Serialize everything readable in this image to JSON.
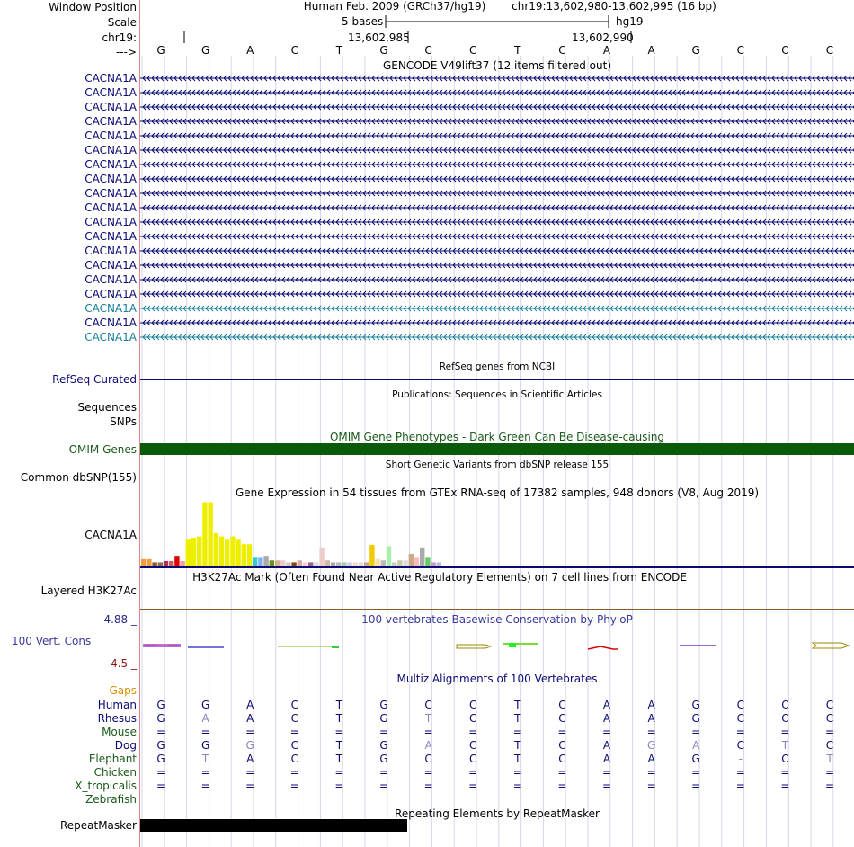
{
  "header": {
    "assembly": "Human Feb. 2009 (GRCh37/hg19)",
    "position": "chr19:13,602,980-13,602,995 (16 bp)",
    "scale_label": "5 bases",
    "scale_db": "hg19",
    "ruler_left": "13,602,985",
    "ruler_right": "13,602,990"
  },
  "labels": {
    "window_position": "Window Position",
    "scale": "Scale",
    "chrom": "chr19:",
    "strand": "--->",
    "refseq": "RefSeq Curated",
    "sequences": "Sequences",
    "snps": "SNPs",
    "omim": "OMIM Genes",
    "dbsnp": "Common dbSNP(155)",
    "gtex_gene": "CACNA1A",
    "h3k27ac": "Layered H3K27Ac",
    "cons_max": "4.88 _",
    "cons": "100 Vert. Cons",
    "cons_min": "-4.5 _",
    "gaps": "Gaps",
    "repeatmasker": "RepeatMasker"
  },
  "bases": [
    "G",
    "G",
    "A",
    "C",
    "T",
    "G",
    "C",
    "C",
    "T",
    "C",
    "A",
    "A",
    "G",
    "C",
    "C",
    "C"
  ],
  "tracks": {
    "gencode_title": "GENCODE V49lift37 (12 items filtered out)",
    "refseq_title": "RefSeq genes from NCBI",
    "pubs_title": "Publications: Sequences in Scientific Articles",
    "omim_title": "OMIM Gene Phenotypes - Dark Green Can Be Disease-causing",
    "dbsnp_title": "Short Genetic Variants from dbSNP release 155",
    "gtex_title": "Gene Expression in 54 tissues from GTEx RNA-seq of 17382 samples, 948 donors (V8, Aug 2019)",
    "h3k27ac_title": "H3K27Ac Mark (Often Found Near Active Regulatory Elements) on 7 cell lines from ENCODE",
    "cons_title": "100 vertebrates Basewise Conservation by PhyloP",
    "multiz_title": "Multiz Alignments of 100 Vertebrates",
    "rmsk_title": "Repeating Elements by RepeatMasker"
  },
  "gencode_transcripts": [
    {
      "name": "CACNA1A",
      "color": "#0a0a72"
    },
    {
      "name": "CACNA1A",
      "color": "#0a0a72"
    },
    {
      "name": "CACNA1A",
      "color": "#0a0a72"
    },
    {
      "name": "CACNA1A",
      "color": "#0a0a72"
    },
    {
      "name": "CACNA1A",
      "color": "#0a0a72"
    },
    {
      "name": "CACNA1A",
      "color": "#0a0a72"
    },
    {
      "name": "CACNA1A",
      "color": "#0a0a72"
    },
    {
      "name": "CACNA1A",
      "color": "#0a0a72"
    },
    {
      "name": "CACNA1A",
      "color": "#0a0a72"
    },
    {
      "name": "CACNA1A",
      "color": "#0a0a72"
    },
    {
      "name": "CACNA1A",
      "color": "#0a0a72"
    },
    {
      "name": "CACNA1A",
      "color": "#0a0a72"
    },
    {
      "name": "CACNA1A",
      "color": "#0a0a72"
    },
    {
      "name": "CACNA1A",
      "color": "#0a0a72"
    },
    {
      "name": "CACNA1A",
      "color": "#0a0a72"
    },
    {
      "name": "CACNA1A",
      "color": "#0a0a72"
    },
    {
      "name": "CACNA1A",
      "color": "#1a7f9a"
    },
    {
      "name": "CACNA1A",
      "color": "#0a0a72"
    },
    {
      "name": "CACNA1A",
      "color": "#1a7f9a"
    }
  ],
  "colors": {
    "navy": "#0a0a72",
    "teal": "#1a7f9a",
    "omim_green": "#0a5a0a",
    "omim_text": "#1a5a1a",
    "cons_blue": "#3b3b9a",
    "cons_max_color": "#2a2a8a",
    "cons_min_color": "#8a1a1a",
    "gaps_orange": "#d98c00",
    "grid": "#d6d6ea",
    "divider": "#e08585"
  },
  "gtex_bars": [
    {
      "v": 0.1,
      "c": "#f0a040"
    },
    {
      "v": 0.1,
      "c": "#f0a040"
    },
    {
      "v": 0.05,
      "c": "#8b5a2b"
    },
    {
      "v": 0.05,
      "c": "#8b7355"
    },
    {
      "v": 0.07,
      "c": "#b03060"
    },
    {
      "v": 0.07,
      "c": "#cd5c5c"
    },
    {
      "v": 0.15,
      "c": "#e00000"
    },
    {
      "v": 0.07,
      "c": "#f4a0a0"
    },
    {
      "v": 0.4,
      "c": "#eeee00"
    },
    {
      "v": 0.43,
      "c": "#eeee00"
    },
    {
      "v": 0.45,
      "c": "#eeee00"
    },
    {
      "v": 0.98,
      "c": "#eeee00"
    },
    {
      "v": 0.98,
      "c": "#eeee00"
    },
    {
      "v": 0.5,
      "c": "#eeee00"
    },
    {
      "v": 0.45,
      "c": "#eeee00"
    },
    {
      "v": 0.4,
      "c": "#eeee00"
    },
    {
      "v": 0.45,
      "c": "#eeee00"
    },
    {
      "v": 0.4,
      "c": "#eeee00"
    },
    {
      "v": 0.33,
      "c": "#eeee00"
    },
    {
      "v": 0.33,
      "c": "#eeee00"
    },
    {
      "v": 0.12,
      "c": "#33cccc"
    },
    {
      "v": 0.12,
      "c": "#7fb0ff"
    },
    {
      "v": 0.15,
      "c": "#aaaaaa"
    },
    {
      "v": 0.08,
      "c": "#6b8e23"
    },
    {
      "v": 0.08,
      "c": "#d2b48c"
    },
    {
      "v": 0.08,
      "c": "#eecccc"
    },
    {
      "v": 0.05,
      "c": "#cccccc"
    },
    {
      "v": 0.05,
      "c": "#8b4513"
    },
    {
      "v": 0.08,
      "c": "#ddaaaa"
    },
    {
      "v": 0.05,
      "c": "#ffcccc"
    },
    {
      "v": 0.05,
      "c": "#996699"
    },
    {
      "v": 0.05,
      "c": "#dddddd"
    },
    {
      "v": 0.28,
      "c": "#eecccc"
    },
    {
      "v": 0.08,
      "c": "#ccbbaa"
    },
    {
      "v": 0.05,
      "c": "#aaaaaa"
    },
    {
      "v": 0.05,
      "c": "#bbbbbb"
    },
    {
      "v": 0.05,
      "c": "#aaccaa"
    },
    {
      "v": 0.05,
      "c": "#ccccee"
    },
    {
      "v": 0.05,
      "c": "#eeddcc"
    },
    {
      "v": 0.05,
      "c": "#dddddd"
    },
    {
      "v": 0.05,
      "c": "#ccaa88"
    },
    {
      "v": 0.32,
      "c": "#eecc00"
    },
    {
      "v": 0.1,
      "c": "#ffddaa"
    },
    {
      "v": 0.08,
      "c": "#bbbbbb"
    },
    {
      "v": 0.3,
      "c": "#aaeeaa"
    },
    {
      "v": 0.05,
      "c": "#cccccc"
    },
    {
      "v": 0.08,
      "c": "#ccccaa"
    },
    {
      "v": 0.08,
      "c": "#dddddd"
    },
    {
      "v": 0.18,
      "c": "#ccaa88"
    },
    {
      "v": 0.12,
      "c": "#ffbbbb"
    },
    {
      "v": 0.28,
      "c": "#aaaaaa"
    },
    {
      "v": 0.12,
      "c": "#66cc66"
    },
    {
      "v": 0.05,
      "c": "#cc99cc"
    },
    {
      "v": 0.05,
      "c": "#bbbbdd"
    }
  ],
  "multiz": {
    "species": [
      {
        "name": "Human",
        "color": "#0a0a72",
        "row": [
          "G",
          "G",
          "A",
          "C",
          "T",
          "G",
          "C",
          "C",
          "T",
          "C",
          "A",
          "A",
          "G",
          "C",
          "C",
          "C"
        ],
        "light": []
      },
      {
        "name": "Rhesus",
        "color": "#0a0a72",
        "row": [
          "G",
          "A",
          "A",
          "C",
          "T",
          "G",
          "T",
          "C",
          "T",
          "C",
          "A",
          "A",
          "G",
          "C",
          "C",
          "C"
        ],
        "light": [
          1,
          6
        ]
      },
      {
        "name": "Mouse",
        "color": "#1a5a1a",
        "row": [
          "=",
          "=",
          "=",
          "=",
          "=",
          "=",
          "=",
          "=",
          "=",
          "=",
          "=",
          "=",
          "=",
          "=",
          "=",
          "="
        ],
        "light": []
      },
      {
        "name": "Dog",
        "color": "#0a0a72",
        "row": [
          "G",
          "G",
          "G",
          "C",
          "T",
          "G",
          "A",
          "C",
          "T",
          "C",
          "A",
          "G",
          "A",
          "C",
          "T",
          "C"
        ],
        "light": [
          2,
          6,
          11,
          12,
          14
        ]
      },
      {
        "name": "Elephant",
        "color": "#1a5a1a",
        "row": [
          "G",
          "T",
          "A",
          "C",
          "T",
          "G",
          "C",
          "C",
          "T",
          "C",
          "A",
          "A",
          "G",
          "-",
          "C",
          "T"
        ],
        "light": [
          1,
          13,
          15
        ]
      },
      {
        "name": "Chicken",
        "color": "#1a5a1a",
        "row": [
          "=",
          "=",
          "=",
          "=",
          "=",
          "=",
          "=",
          "=",
          "=",
          "=",
          "=",
          "=",
          "=",
          "=",
          "=",
          "="
        ],
        "light": []
      },
      {
        "name": "X_tropicalis",
        "color": "#1a5a1a",
        "row": [
          "=",
          "=",
          "=",
          "=",
          "=",
          "=",
          "=",
          "=",
          "=",
          "=",
          "=",
          "=",
          "=",
          "=",
          "=",
          "="
        ],
        "light": []
      },
      {
        "name": "Zebrafish",
        "color": "#1a5a1a",
        "row": [],
        "light": []
      }
    ]
  }
}
